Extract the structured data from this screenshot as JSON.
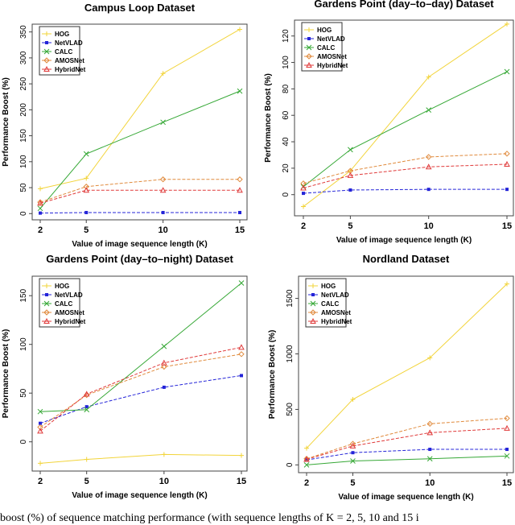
{
  "caption": "boost (%) of sequence matching performance (with sequence lengths of K = 2, 5, 10 and 15 i",
  "series_styles": [
    {
      "name": "HOG",
      "color": "#f2d43a",
      "marker": "plus",
      "dash": "solid"
    },
    {
      "name": "NetVLAD",
      "color": "#2424d8",
      "marker": "square",
      "dash": "dashed"
    },
    {
      "name": "CALC",
      "color": "#36a836",
      "marker": "x",
      "dash": "solid"
    },
    {
      "name": "AMOSNet",
      "color": "#e08a3c",
      "marker": "diamond",
      "dash": "dashed"
    },
    {
      "name": "HybridNet",
      "color": "#e03a3a",
      "marker": "triangle",
      "dash": "dashed"
    }
  ],
  "chart_data": [
    {
      "type": "line",
      "title": "Campus Loop Dataset",
      "xlabel": "Value of image sequence length (K)",
      "ylabel": "Performance Boost (%)",
      "x": [
        2,
        5,
        10,
        15
      ],
      "xticks": [
        2,
        5,
        10,
        15
      ],
      "yticks": [
        0,
        50,
        100,
        150,
        200,
        250,
        300,
        350
      ],
      "ylim": [
        -12,
        365
      ],
      "legend": "top-left",
      "grid": false,
      "series": [
        {
          "name": "HOG",
          "values": [
            48,
            68,
            270,
            355
          ]
        },
        {
          "name": "NetVLAD",
          "values": [
            1,
            2,
            2,
            2
          ]
        },
        {
          "name": "CALC",
          "values": [
            10,
            115,
            176,
            236
          ]
        },
        {
          "name": "AMOSNet",
          "values": [
            22,
            52,
            66,
            66
          ]
        },
        {
          "name": "HybridNet",
          "values": [
            20,
            45,
            45,
            45
          ]
        }
      ]
    },
    {
      "type": "line",
      "title": "Gardens Point (day–to–day) Dataset",
      "xlabel": "Value of image sequence length (K)",
      "ylabel": "Performance Boost (%)",
      "x": [
        2,
        5,
        10,
        15
      ],
      "xticks": [
        2,
        5,
        10,
        15
      ],
      "yticks": [
        0,
        20,
        40,
        60,
        80,
        100,
        120
      ],
      "ylim": [
        -16,
        132
      ],
      "legend": "top-left",
      "grid": false,
      "series": [
        {
          "name": "HOG",
          "values": [
            -9,
            18,
            89,
            129
          ]
        },
        {
          "name": "NetVLAD",
          "values": [
            1,
            3.5,
            4,
            4
          ]
        },
        {
          "name": "CALC",
          "values": [
            6,
            34,
            64,
            93
          ]
        },
        {
          "name": "AMOSNet",
          "values": [
            8.5,
            18,
            28.5,
            31
          ]
        },
        {
          "name": "HybridNet",
          "values": [
            5,
            14.5,
            21,
            23
          ]
        }
      ]
    },
    {
      "type": "line",
      "title": "Gardens Point (day–to–night) Dataset",
      "xlabel": "Value of image sequence length (K)",
      "ylabel": "Performance Boost (%)",
      "x": [
        2,
        5,
        10,
        15
      ],
      "xticks": [
        2,
        5,
        10,
        15
      ],
      "yticks": [
        0,
        50,
        100,
        150
      ],
      "ylim": [
        -30,
        170
      ],
      "legend": "top-left",
      "grid": false,
      "series": [
        {
          "name": "HOG",
          "values": [
            -22,
            -18,
            -13,
            -14
          ]
        },
        {
          "name": "NetVLAD",
          "values": [
            19,
            36,
            56,
            68
          ]
        },
        {
          "name": "CALC",
          "values": [
            31,
            33,
            98,
            163
          ]
        },
        {
          "name": "AMOSNet",
          "values": [
            15,
            48,
            77,
            90
          ]
        },
        {
          "name": "HybridNet",
          "values": [
            11,
            49,
            81,
            97
          ]
        }
      ]
    },
    {
      "type": "line",
      "title": "Nordland Dataset",
      "xlabel": "Value of image sequence length (K)",
      "ylabel": "Performance Boost (%)",
      "x": [
        2,
        5,
        10,
        15
      ],
      "xticks": [
        2,
        5,
        10,
        15
      ],
      "yticks": [
        0,
        500,
        1000,
        1500
      ],
      "ylim": [
        -70,
        1700
      ],
      "legend": "top-left",
      "grid": false,
      "series": [
        {
          "name": "HOG",
          "values": [
            150,
            590,
            965,
            1630
          ]
        },
        {
          "name": "NetVLAD",
          "values": [
            45,
            110,
            140,
            140
          ]
        },
        {
          "name": "CALC",
          "values": [
            0,
            35,
            55,
            80
          ]
        },
        {
          "name": "AMOSNet",
          "values": [
            55,
            190,
            370,
            420
          ]
        },
        {
          "name": "HybridNet",
          "values": [
            50,
            170,
            290,
            330
          ]
        }
      ]
    }
  ]
}
